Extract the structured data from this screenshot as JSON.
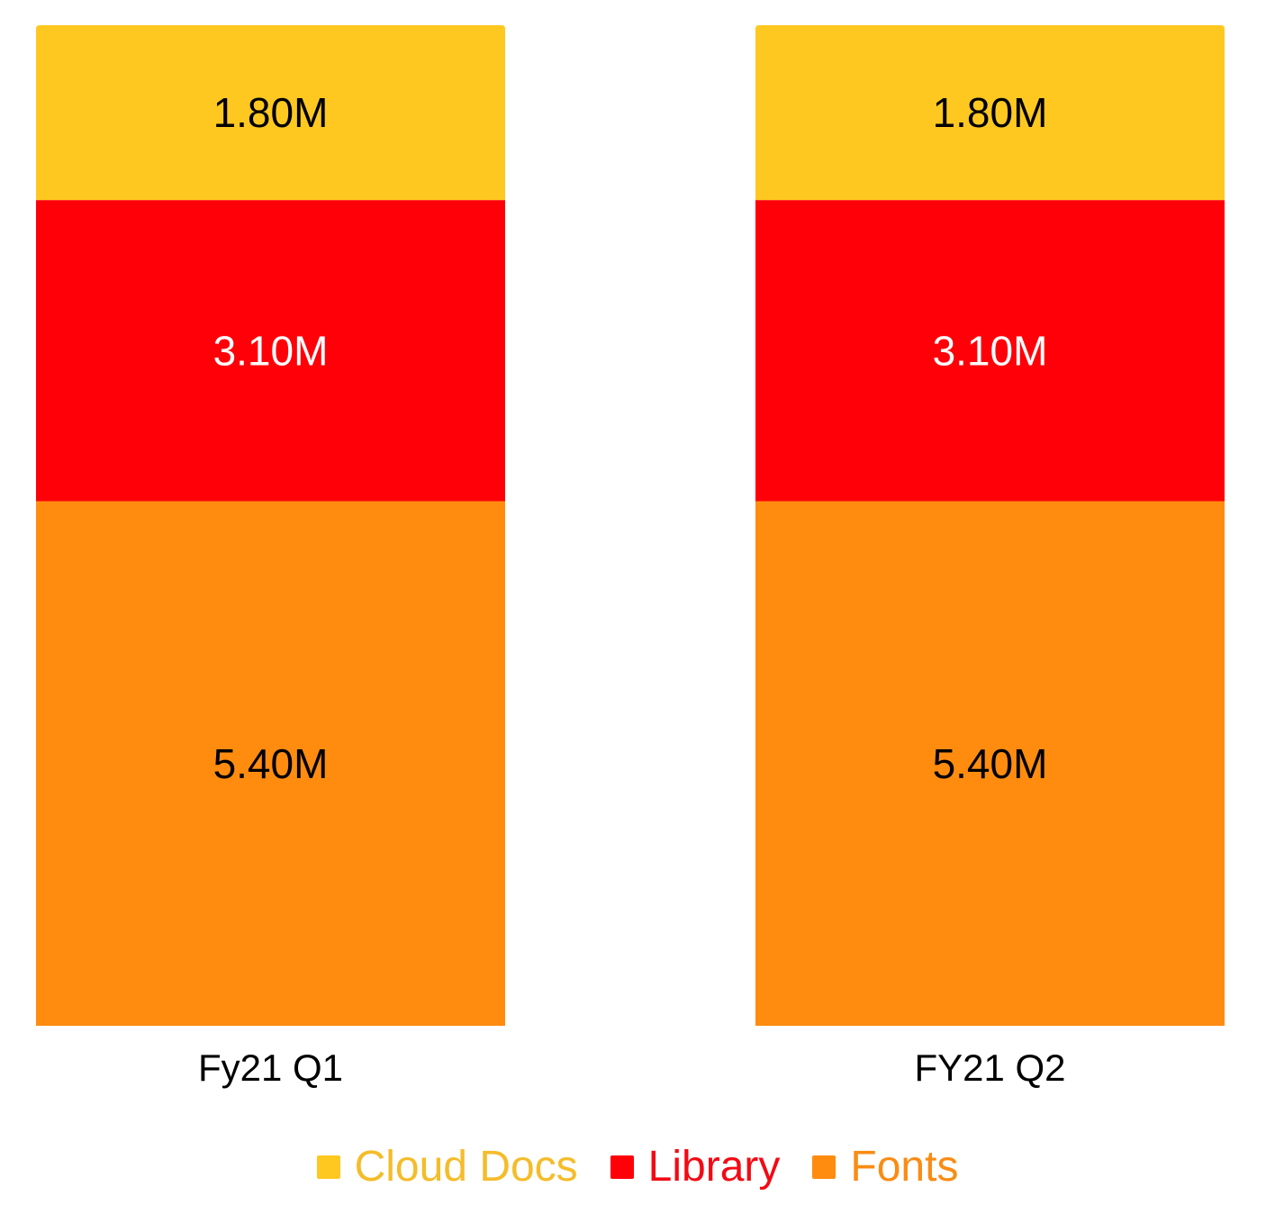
{
  "chart_data": {
    "type": "bar",
    "stacked": true,
    "categories": [
      "Fy21 Q1",
      "FY21 Q2"
    ],
    "series": [
      {
        "name": "Fonts",
        "color": "#FF8C0F",
        "values": [
          5.4,
          5.4
        ],
        "labels": [
          "5.40M",
          "5.40M"
        ],
        "label_color": "#000000"
      },
      {
        "name": "Library",
        "color": "#FF0009",
        "values": [
          3.1,
          3.1
        ],
        "labels": [
          "3.10M",
          "3.10M"
        ],
        "label_color": "#ffffff"
      },
      {
        "name": "Cloud Docs",
        "color": "#FFC820",
        "values": [
          1.8,
          1.8
        ],
        "labels": [
          "1.80M",
          "1.80M"
        ],
        "label_color": "#000000"
      }
    ],
    "ylim": [
      0,
      10.3
    ],
    "grid": false,
    "legend_position": "bottom"
  },
  "legend": {
    "items": [
      {
        "label": "Cloud Docs",
        "color": "#FFC820",
        "text_color": "#F5BC2A"
      },
      {
        "label": "Library",
        "color": "#FF0009",
        "text_color": "#F20A14"
      },
      {
        "label": "Fonts",
        "color": "#FF8C0F",
        "text_color": "#FA8C14"
      }
    ]
  }
}
